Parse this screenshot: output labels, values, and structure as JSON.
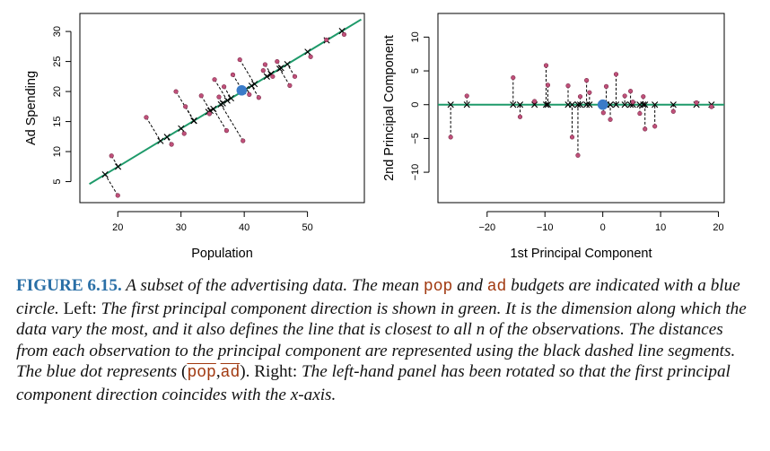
{
  "chart_data": [
    {
      "type": "scatter",
      "title": "",
      "xlabel": "Population",
      "ylabel": "Ad Spending",
      "xlim": [
        14,
        59
      ],
      "ylim": [
        1.5,
        33
      ],
      "xticks": [
        20,
        30,
        40,
        50
      ],
      "yticks": [
        5,
        10,
        15,
        20,
        25,
        30
      ],
      "grid": false,
      "mean": {
        "x": 39.6,
        "y": 20.2,
        "color": "#3a7bc8"
      },
      "principal_component_line": {
        "x": [
          15.5,
          58.5
        ],
        "y": [
          4.6,
          32.0
        ],
        "color": "#1e9a6a"
      },
      "points": [
        {
          "x": 20.0,
          "y": 2.7
        },
        {
          "x": 19.0,
          "y": 9.3
        },
        {
          "x": 24.5,
          "y": 15.7
        },
        {
          "x": 28.5,
          "y": 11.2
        },
        {
          "x": 29.2,
          "y": 20.0
        },
        {
          "x": 30.7,
          "y": 17.5
        },
        {
          "x": 30.5,
          "y": 13.0
        },
        {
          "x": 33.2,
          "y": 19.3
        },
        {
          "x": 34.5,
          "y": 16.3
        },
        {
          "x": 35.3,
          "y": 22.0
        },
        {
          "x": 36.0,
          "y": 19.1
        },
        {
          "x": 36.8,
          "y": 20.8
        },
        {
          "x": 37.2,
          "y": 13.5
        },
        {
          "x": 38.2,
          "y": 22.8
        },
        {
          "x": 39.3,
          "y": 25.3
        },
        {
          "x": 39.8,
          "y": 11.8
        },
        {
          "x": 40.8,
          "y": 19.5
        },
        {
          "x": 42.3,
          "y": 19.0
        },
        {
          "x": 43.0,
          "y": 23.5
        },
        {
          "x": 43.3,
          "y": 24.5
        },
        {
          "x": 44.5,
          "y": 22.5
        },
        {
          "x": 45.2,
          "y": 25.0
        },
        {
          "x": 47.2,
          "y": 21.0
        },
        {
          "x": 48.0,
          "y": 22.5
        },
        {
          "x": 50.5,
          "y": 25.8
        },
        {
          "x": 53.0,
          "y": 28.6
        },
        {
          "x": 55.8,
          "y": 29.5
        }
      ]
    },
    {
      "type": "scatter",
      "title": "",
      "xlabel": "1st Principal Component",
      "ylabel": "2nd Principal Component",
      "xlim": [
        -28.5,
        21
      ],
      "ylim": [
        -14.5,
        13.5
      ],
      "xticks": [
        -20,
        -10,
        0,
        10,
        20
      ],
      "yticks": [
        -10,
        -5,
        0,
        5,
        10
      ],
      "grid": false,
      "mean": {
        "x": 0,
        "y": 0,
        "color": "#3a7bc8"
      },
      "principal_component_line": {
        "x": [
          -28.5,
          21
        ],
        "y": [
          0,
          0
        ],
        "color": "#1e9a6a"
      },
      "points": [
        {
          "x": -26.3,
          "y": -4.8
        },
        {
          "x": -23.5,
          "y": 1.3
        },
        {
          "x": -15.5,
          "y": 4.0
        },
        {
          "x": -14.3,
          "y": -1.8
        },
        {
          "x": -11.8,
          "y": 0.5
        },
        {
          "x": -9.8,
          "y": 5.8
        },
        {
          "x": -9.5,
          "y": 2.9
        },
        {
          "x": -6.0,
          "y": 2.8
        },
        {
          "x": -5.3,
          "y": -4.8
        },
        {
          "x": -4.3,
          "y": -7.5
        },
        {
          "x": -3.9,
          "y": 1.2
        },
        {
          "x": -2.8,
          "y": 3.6
        },
        {
          "x": -2.3,
          "y": 1.8
        },
        {
          "x": 0.1,
          "y": -1.2
        },
        {
          "x": 0.6,
          "y": 2.7
        },
        {
          "x": 1.3,
          "y": -2.2
        },
        {
          "x": 2.3,
          "y": 4.5
        },
        {
          "x": 3.8,
          "y": 1.3
        },
        {
          "x": 4.8,
          "y": 2.0
        },
        {
          "x": 5.2,
          "y": 0.4
        },
        {
          "x": 6.4,
          "y": -1.3
        },
        {
          "x": 7.0,
          "y": 1.2
        },
        {
          "x": 7.3,
          "y": -3.6
        },
        {
          "x": 9.0,
          "y": -3.2
        },
        {
          "x": 12.2,
          "y": -1.0
        },
        {
          "x": 16.2,
          "y": 0.3
        },
        {
          "x": 18.8,
          "y": -0.3
        }
      ]
    }
  ],
  "caption": {
    "label": "FIGURE 6.15.",
    "s1": " A subset of the advertising data. The mean ",
    "code_pop": "pop",
    "s2": " and ",
    "code_ad": "ad",
    "s3": " budgets are indicated with a blue circle.",
    "left_label": " Left:",
    "s4": " The first principal component direction is shown in green. It is the dimension along which the data vary the most, and it also defines the line that is closest to all n of the observations. The distances from each observation to the principal component are represented using the black dashed line segments. The blue dot represents ",
    "paren_open": "(",
    "bar_pop": "pop",
    "comma": ",",
    "bar_ad": "ad",
    "paren_close": ").",
    "right_label": " Right:",
    "s5": " The left-hand panel has been rotated so that the first principal component direction coincides with the x-axis."
  }
}
